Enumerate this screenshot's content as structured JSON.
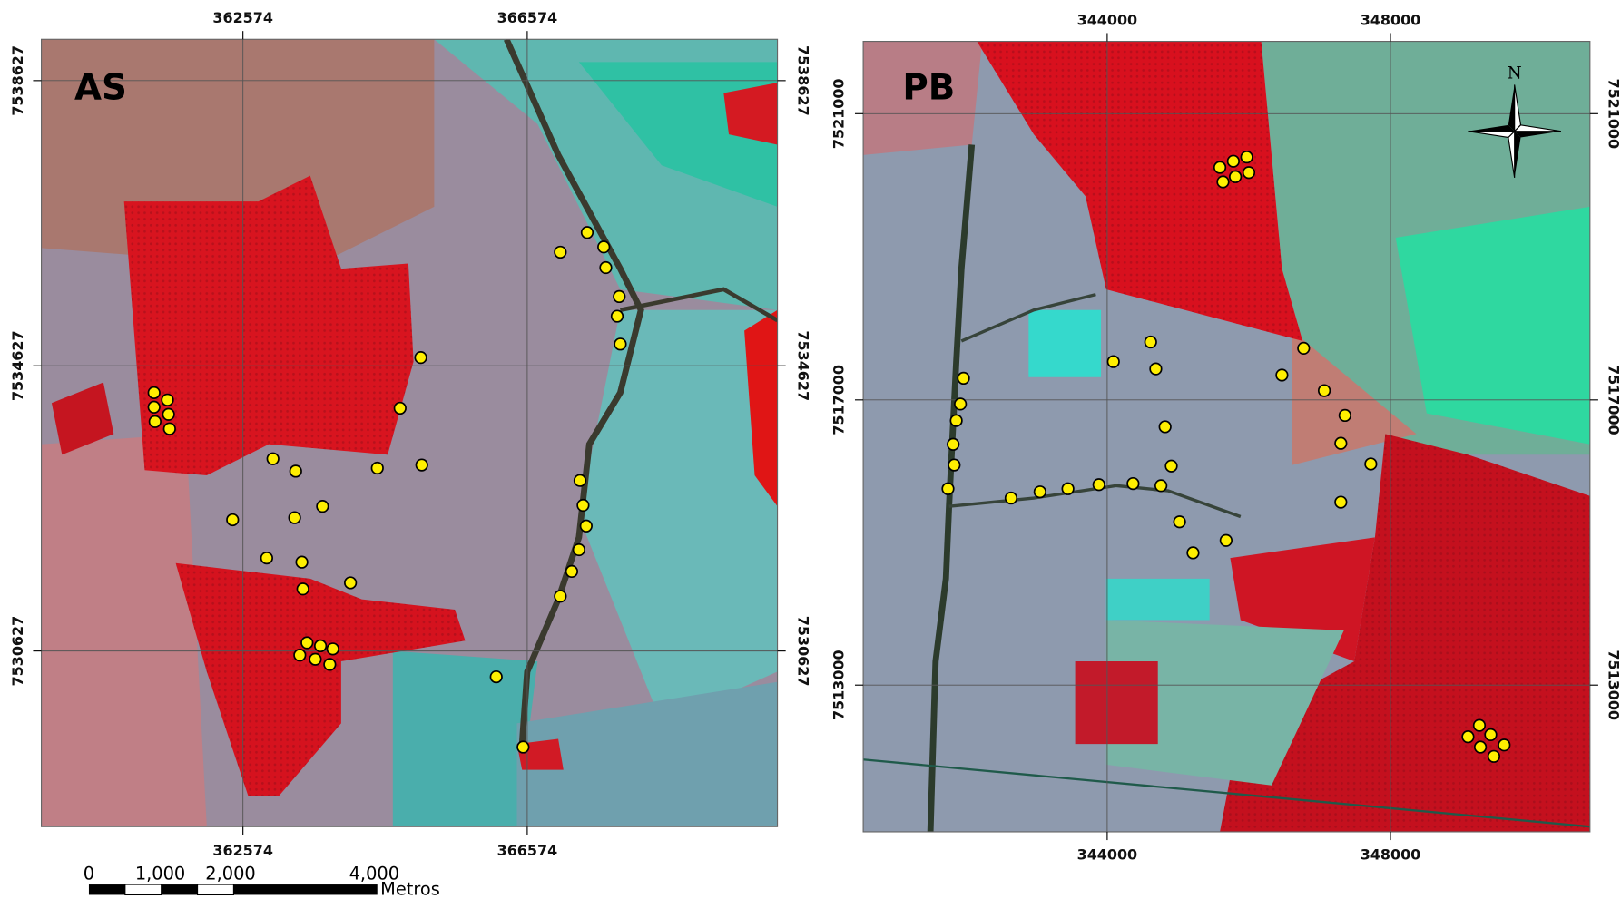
{
  "panels": [
    {
      "label": "AS",
      "x_ticks": [
        362574,
        366574
      ],
      "y_ticks": [
        7538627,
        7534627,
        7530627
      ]
    },
    {
      "label": "PB",
      "x_ticks": [
        344000,
        348000
      ],
      "y_ticks": [
        7521000,
        7517000,
        7513000
      ]
    }
  ],
  "scale_bar": {
    "labels": [
      "0",
      "1,000",
      "2,000",
      "4,000"
    ],
    "unit": "Metros"
  },
  "north_arrow": "N"
}
